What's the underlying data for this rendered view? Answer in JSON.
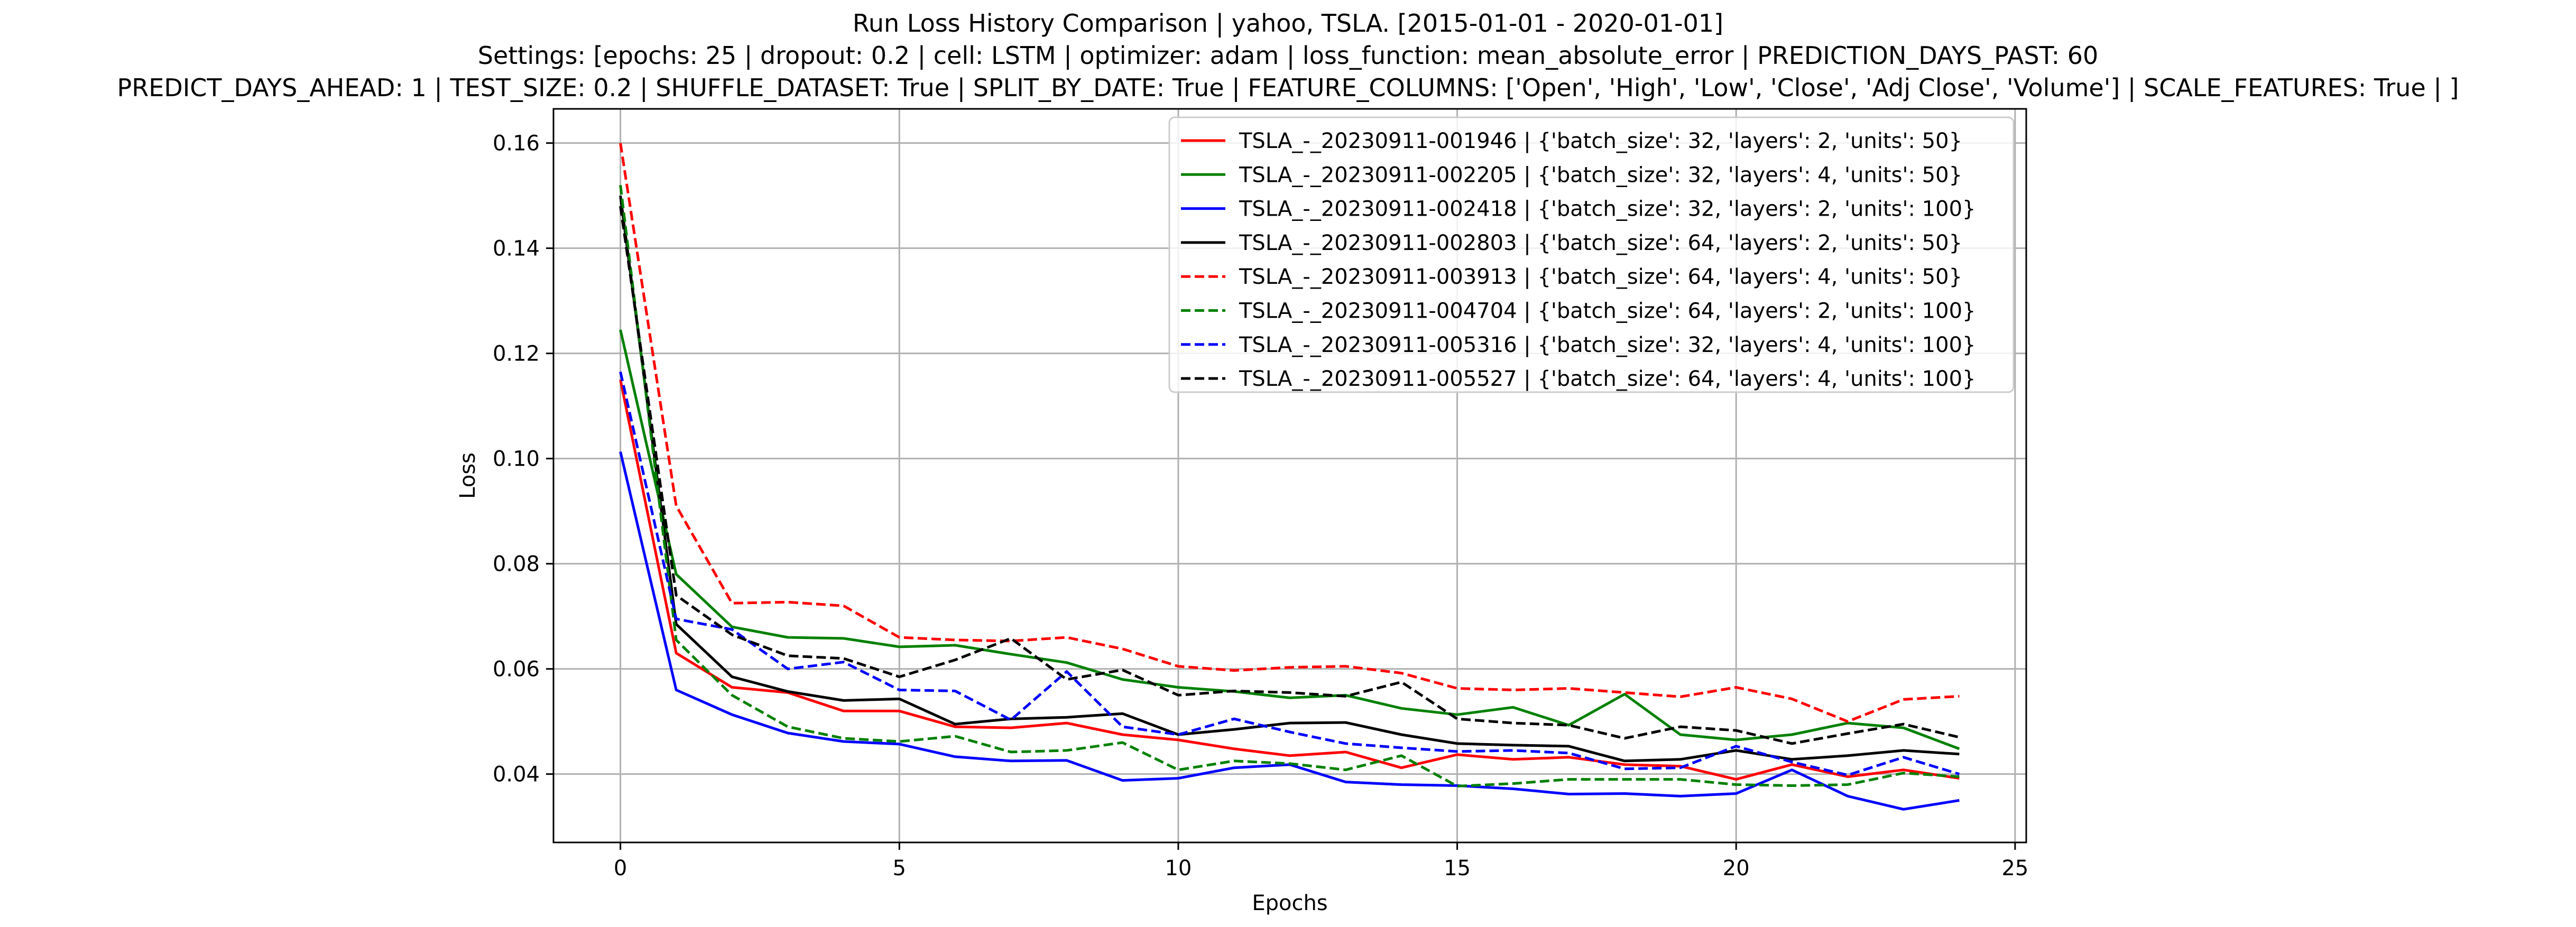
{
  "chart_data": {
    "type": "line",
    "title": "Run Loss History Comparison | yahoo, TSLA. [2015-01-01 - 2020-01-01]",
    "subtitle_lines": [
      "Settings: [epochs: 25 | dropout: 0.2 | cell: LSTM | optimizer: adam | loss_function: mean_absolute_error | PREDICTION_DAYS_PAST: 60",
      "PREDICT_DAYS_AHEAD: 1 | TEST_SIZE: 0.2 | SHUFFLE_DATASET: True | SPLIT_BY_DATE: True | FEATURE_COLUMNS: ['Open', 'High', 'Low', 'Close', 'Adj Close', 'Volume'] | SCALE_FEATURES: True | ]"
    ],
    "xlabel": "Epochs",
    "ylabel": "Loss",
    "xlim": [
      -1.2,
      25.2
    ],
    "ylim": [
      0.027,
      0.1665
    ],
    "xticks": [
      0,
      5,
      10,
      15,
      20,
      25
    ],
    "yticks": [
      0.04,
      0.06,
      0.08,
      0.1,
      0.12,
      0.14,
      0.16
    ],
    "ytick_labels": [
      "0.04",
      "0.06",
      "0.08",
      "0.10",
      "0.12",
      "0.14",
      "0.16"
    ],
    "grid": true,
    "legend_position": "top-right",
    "x": [
      0,
      1,
      2,
      3,
      4,
      5,
      6,
      7,
      8,
      9,
      10,
      11,
      12,
      13,
      14,
      15,
      16,
      17,
      18,
      19,
      20,
      21,
      22,
      23,
      24
    ],
    "series": [
      {
        "name": "TSLA_-_20230911-001946 | {'batch_size': 32, 'layers': 2, 'units': 50}",
        "color": "#ff0000",
        "dash": "solid",
        "values": [
          0.115,
          0.063,
          0.0565,
          0.0555,
          0.052,
          0.052,
          0.049,
          0.0488,
          0.0497,
          0.0475,
          0.0465,
          0.0448,
          0.0435,
          0.0442,
          0.0412,
          0.0437,
          0.0428,
          0.0432,
          0.0418,
          0.0415,
          0.039,
          0.0418,
          0.0395,
          0.0408,
          0.0392
        ]
      },
      {
        "name": "TSLA_-_20230911-002205 | {'batch_size': 32, 'layers': 4, 'units': 50}",
        "color": "#008000",
        "dash": "solid",
        "values": [
          0.1245,
          0.078,
          0.068,
          0.066,
          0.0658,
          0.0642,
          0.0645,
          0.0628,
          0.0612,
          0.058,
          0.0565,
          0.0557,
          0.0545,
          0.055,
          0.0525,
          0.0513,
          0.0527,
          0.0493,
          0.0552,
          0.0475,
          0.0465,
          0.0475,
          0.0497,
          0.0488,
          0.0448
        ]
      },
      {
        "name": "TSLA_-_20230911-002418 | {'batch_size': 32, 'layers': 2, 'units': 100}",
        "color": "#0000ff",
        "dash": "solid",
        "values": [
          0.1013,
          0.056,
          0.0513,
          0.0478,
          0.0462,
          0.0457,
          0.0433,
          0.0425,
          0.0426,
          0.0388,
          0.0392,
          0.0412,
          0.0418,
          0.0385,
          0.038,
          0.0378,
          0.0372,
          0.0362,
          0.0363,
          0.0358,
          0.0363,
          0.0408,
          0.0358,
          0.0333,
          0.035
        ]
      },
      {
        "name": "TSLA_-_20230911-002803 | {'batch_size': 64, 'layers': 2, 'units': 50}",
        "color": "#000000",
        "dash": "solid",
        "values": [
          0.15,
          0.0685,
          0.0585,
          0.0557,
          0.054,
          0.0543,
          0.0495,
          0.0505,
          0.0508,
          0.0515,
          0.0475,
          0.0485,
          0.0497,
          0.0498,
          0.0475,
          0.0458,
          0.0455,
          0.0453,
          0.0425,
          0.0428,
          0.0445,
          0.0428,
          0.0435,
          0.0445,
          0.0438
        ]
      },
      {
        "name": "TSLA_-_20230911-003913 | {'batch_size': 64, 'layers': 4, 'units': 50}",
        "color": "#ff0000",
        "dash": "dashed",
        "values": [
          0.16,
          0.091,
          0.0725,
          0.0727,
          0.072,
          0.066,
          0.0655,
          0.0653,
          0.066,
          0.0638,
          0.0605,
          0.0597,
          0.0603,
          0.0605,
          0.0592,
          0.0563,
          0.056,
          0.0563,
          0.0555,
          0.0547,
          0.0565,
          0.0543,
          0.05,
          0.0542,
          0.0548
        ]
      },
      {
        "name": "TSLA_-_20230911-004704 | {'batch_size': 64, 'layers': 2, 'units': 100}",
        "color": "#008000",
        "dash": "dashed",
        "values": [
          0.152,
          0.0655,
          0.055,
          0.049,
          0.0468,
          0.0462,
          0.0472,
          0.0442,
          0.0445,
          0.046,
          0.0408,
          0.0425,
          0.042,
          0.0408,
          0.0435,
          0.0377,
          0.0382,
          0.039,
          0.039,
          0.039,
          0.038,
          0.0378,
          0.038,
          0.0402,
          0.0395
        ]
      },
      {
        "name": "TSLA_-_20230911-005316 | {'batch_size': 32, 'layers': 4, 'units': 100}",
        "color": "#0000ff",
        "dash": "dashed",
        "values": [
          0.1165,
          0.0695,
          0.0675,
          0.06,
          0.0613,
          0.056,
          0.0558,
          0.0503,
          0.0595,
          0.049,
          0.0475,
          0.0505,
          0.048,
          0.0458,
          0.045,
          0.0443,
          0.0445,
          0.044,
          0.041,
          0.0412,
          0.0453,
          0.0423,
          0.0398,
          0.0432,
          0.04
        ]
      },
      {
        "name": "TSLA_-_20230911-005527 | {'batch_size': 64, 'layers': 4, 'units': 100}",
        "color": "#000000",
        "dash": "dashed",
        "values": [
          0.148,
          0.074,
          0.0665,
          0.0625,
          0.062,
          0.0585,
          0.0617,
          0.0658,
          0.058,
          0.0598,
          0.055,
          0.0558,
          0.0555,
          0.0548,
          0.0575,
          0.0505,
          0.0497,
          0.0493,
          0.0468,
          0.049,
          0.0483,
          0.0458,
          0.0477,
          0.0495,
          0.047
        ]
      }
    ]
  }
}
